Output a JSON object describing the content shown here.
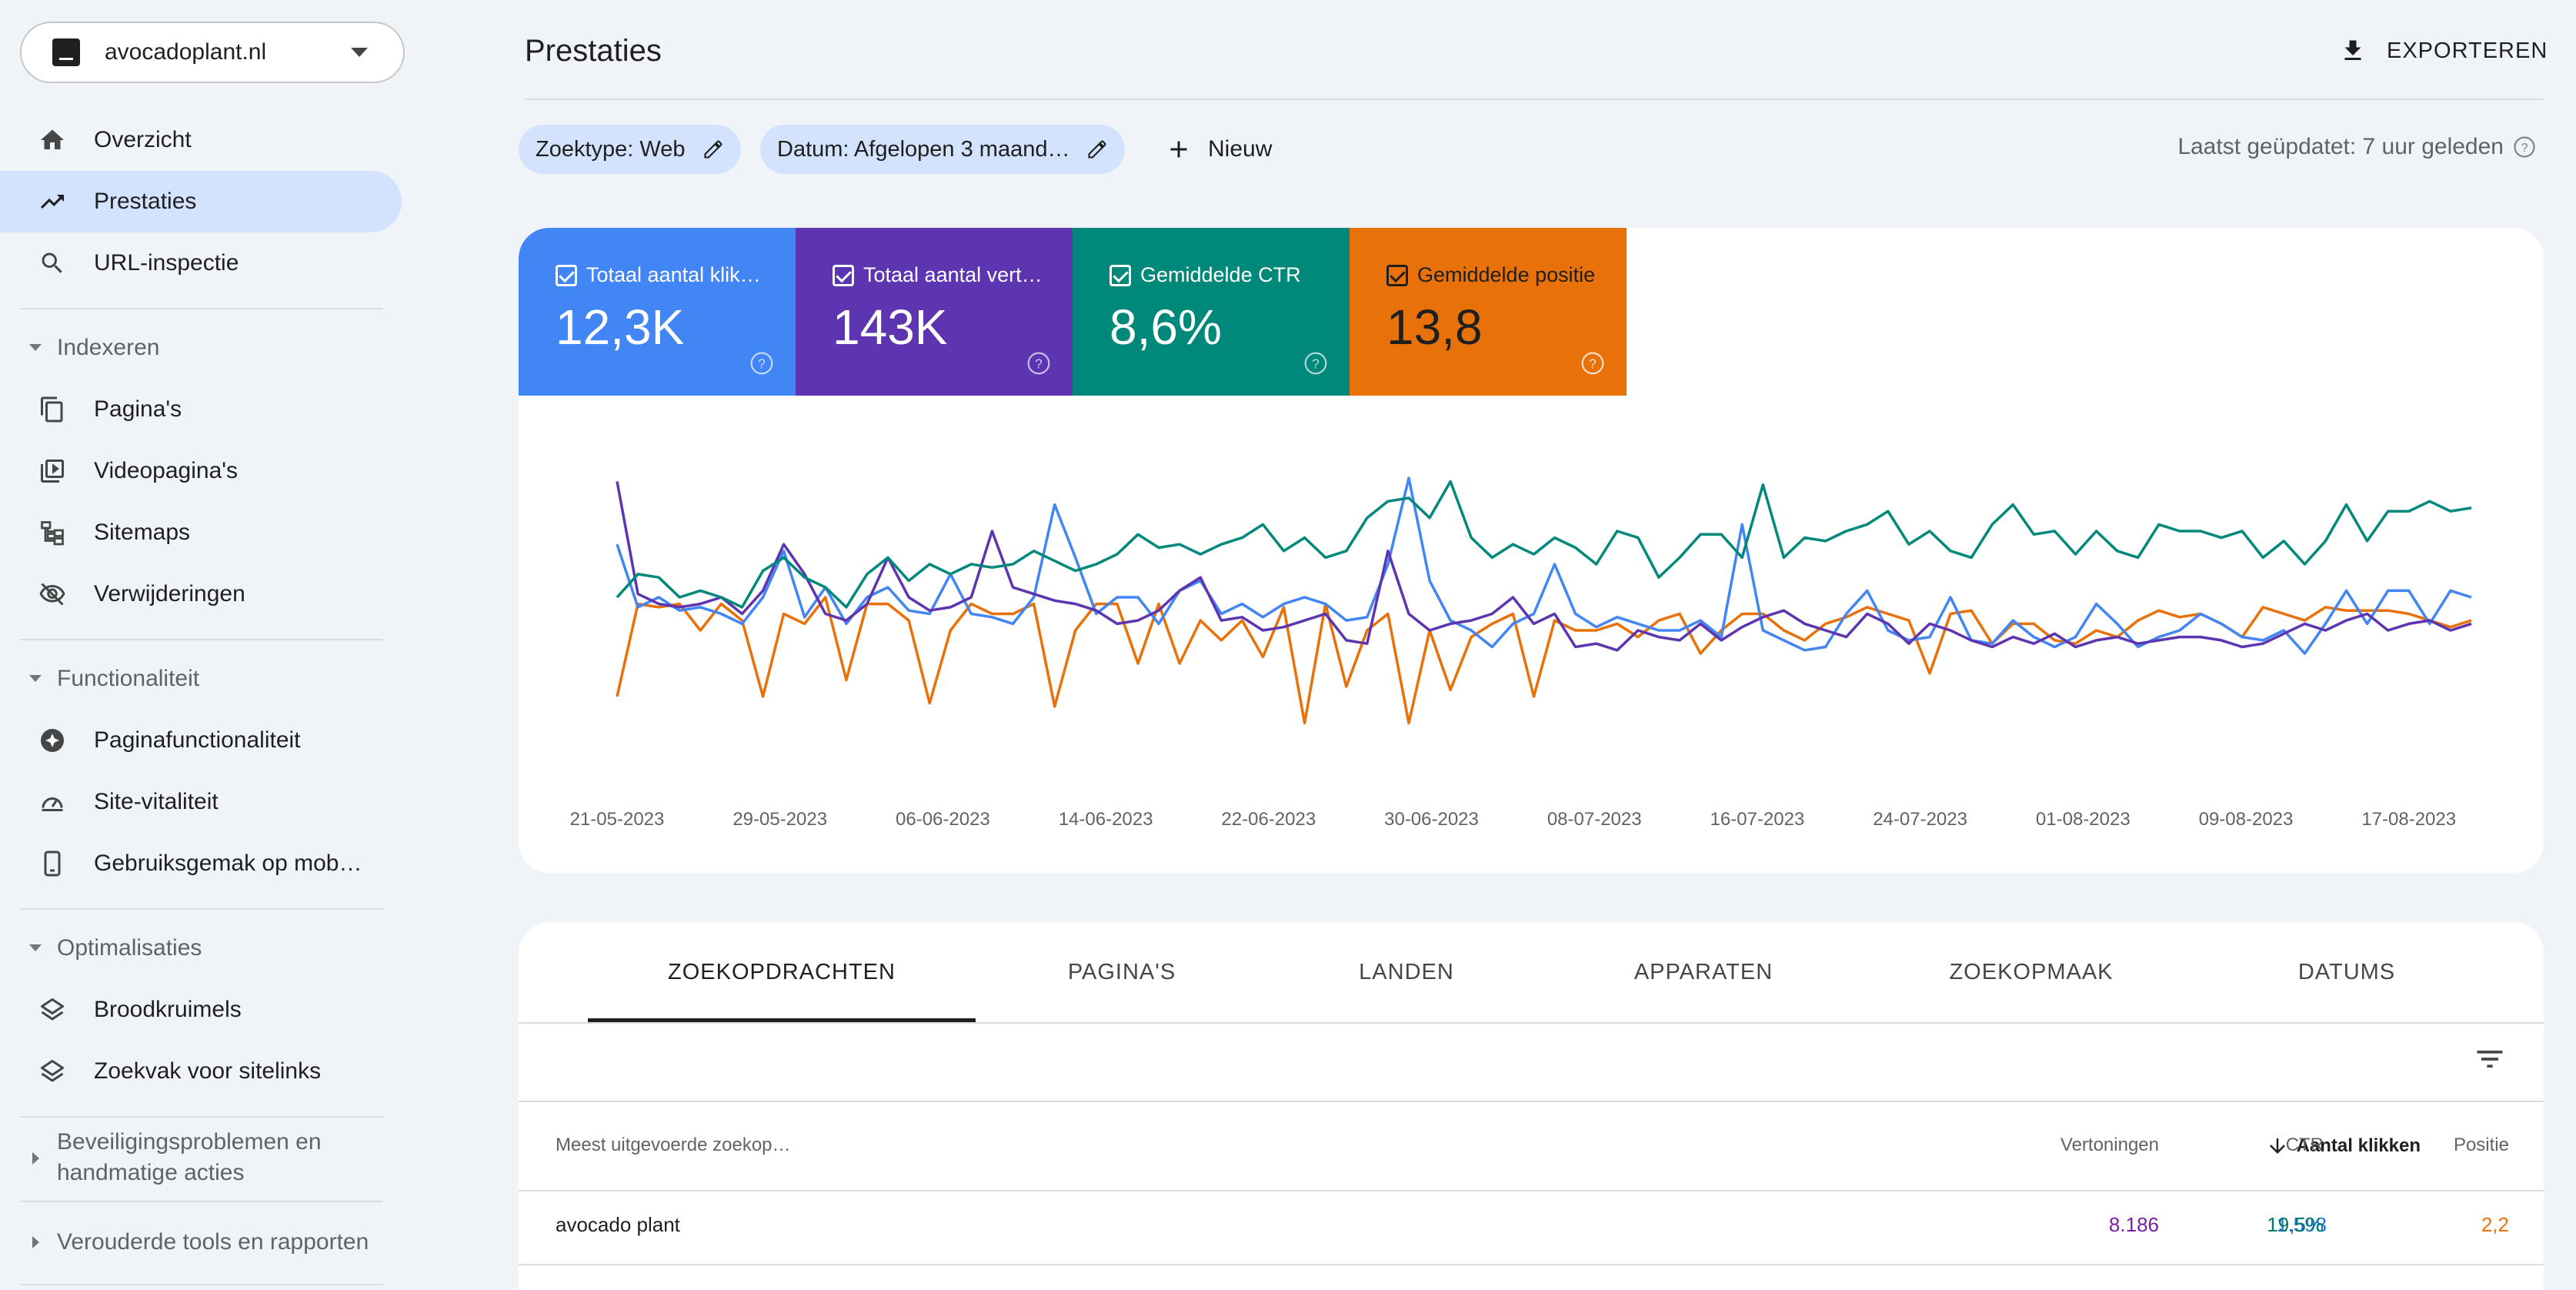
{
  "property": {
    "name": "avocadoplant.nl"
  },
  "sidebar": {
    "items": [
      {
        "label": "Overzicht",
        "icon": "home-icon"
      },
      {
        "label": "Prestaties",
        "icon": "trending-up-icon",
        "active": true
      },
      {
        "label": "URL-inspectie",
        "icon": "search-icon"
      }
    ],
    "sections": [
      {
        "title": "Indexeren",
        "expanded": true,
        "items": [
          {
            "label": "Pagina's",
            "icon": "pages-icon"
          },
          {
            "label": "Videopagina's",
            "icon": "video-pages-icon"
          },
          {
            "label": "Sitemaps",
            "icon": "sitemap-icon"
          },
          {
            "label": "Verwijderingen",
            "icon": "eye-off-icon"
          }
        ]
      },
      {
        "title": "Functionaliteit",
        "expanded": true,
        "items": [
          {
            "label": "Paginafunctionaliteit",
            "icon": "page-experience-icon"
          },
          {
            "label": "Site-vitaliteit",
            "icon": "gauge-icon"
          },
          {
            "label": "Gebruiksgemak op mob…",
            "icon": "smartphone-icon"
          }
        ]
      },
      {
        "title": "Optimalisaties",
        "expanded": true,
        "items": [
          {
            "label": "Broodkruimels",
            "icon": "layers-icon"
          },
          {
            "label": "Zoekvak voor sitelinks",
            "icon": "layers-icon"
          }
        ]
      },
      {
        "title_line1": "Beveiligingsproblemen en",
        "title_line2": "handmatige acties",
        "expanded": false
      },
      {
        "title": "Verouderde tools en rapporten",
        "expanded": false
      }
    ]
  },
  "header": {
    "title": "Prestaties",
    "export_label": "EXPORTEREN",
    "last_updated": "Laatst geüpdatet: 7 uur geleden"
  },
  "filters": {
    "chips": [
      "Zoektype: Web",
      "Datum: Afgelopen 3 maand…"
    ],
    "new_label": "Nieuw"
  },
  "metrics": [
    {
      "label": "Totaal aantal klik…",
      "value": "12,3K",
      "color": "#4285f4"
    },
    {
      "label": "Totaal aantal vert…",
      "value": "143K",
      "color": "#5e35b1"
    },
    {
      "label": "Gemiddelde CTR",
      "value": "8,6%",
      "color": "#00897b"
    },
    {
      "label": "Gemiddelde positie",
      "value": "13,8",
      "color": "#e8710a"
    }
  ],
  "chart_data": {
    "type": "line",
    "x_tick_labels": [
      "21-05-2023",
      "29-05-2023",
      "06-06-2023",
      "14-06-2023",
      "22-06-2023",
      "30-06-2023",
      "08-07-2023",
      "16-07-2023",
      "24-07-2023",
      "01-08-2023",
      "09-08-2023",
      "17-08-2023"
    ],
    "x_start": "20-05-2023",
    "x_end": "19-08-2023",
    "axes_hidden": true,
    "normalized": true,
    "ylim": [
      0,
      1
    ],
    "series": [
      {
        "color": "#4285f4",
        "values": [
          0.76,
          0.57,
          0.6,
          0.56,
          0.57,
          0.55,
          0.52,
          0.6,
          0.74,
          0.54,
          0.63,
          0.52,
          0.6,
          0.63,
          0.56,
          0.55,
          0.67,
          0.55,
          0.54,
          0.52,
          0.6,
          0.88,
          0.72,
          0.55,
          0.6,
          0.6,
          0.52,
          0.62,
          0.65,
          0.55,
          0.58,
          0.54,
          0.58,
          0.6,
          0.58,
          0.53,
          0.54,
          0.7,
          0.96,
          0.65,
          0.53,
          0.5,
          0.45,
          0.52,
          0.55,
          0.7,
          0.55,
          0.51,
          0.54,
          0.52,
          0.5,
          0.5,
          0.53,
          0.48,
          0.82,
          0.5,
          0.47,
          0.44,
          0.45,
          0.55,
          0.62,
          0.5,
          0.47,
          0.48,
          0.6,
          0.47,
          0.46,
          0.53,
          0.48,
          0.45,
          0.48,
          0.58,
          0.52,
          0.45,
          0.48,
          0.5,
          0.55,
          0.52,
          0.48,
          0.47,
          0.5,
          0.43,
          0.52,
          0.62,
          0.52,
          0.62,
          0.62,
          0.52,
          0.62,
          0.6
        ]
      },
      {
        "color": "#5e35b1",
        "values": [
          0.95,
          0.61,
          0.58,
          0.57,
          0.58,
          0.6,
          0.55,
          0.62,
          0.76,
          0.67,
          0.55,
          0.53,
          0.58,
          0.72,
          0.6,
          0.56,
          0.57,
          0.6,
          0.8,
          0.63,
          0.61,
          0.59,
          0.58,
          0.56,
          0.52,
          0.53,
          0.56,
          0.62,
          0.66,
          0.53,
          0.54,
          0.5,
          0.51,
          0.53,
          0.55,
          0.47,
          0.46,
          0.74,
          0.55,
          0.5,
          0.52,
          0.53,
          0.55,
          0.6,
          0.52,
          0.55,
          0.45,
          0.46,
          0.44,
          0.5,
          0.48,
          0.47,
          0.52,
          0.47,
          0.51,
          0.54,
          0.56,
          0.52,
          0.5,
          0.48,
          0.55,
          0.52,
          0.46,
          0.52,
          0.5,
          0.47,
          0.45,
          0.48,
          0.46,
          0.49,
          0.45,
          0.47,
          0.48,
          0.46,
          0.47,
          0.48,
          0.48,
          0.47,
          0.45,
          0.46,
          0.49,
          0.52,
          0.5,
          0.53,
          0.55,
          0.5,
          0.52,
          0.53,
          0.5,
          0.52
        ]
      },
      {
        "color": "#00897b",
        "values": [
          0.6,
          0.67,
          0.66,
          0.6,
          0.62,
          0.6,
          0.57,
          0.68,
          0.72,
          0.66,
          0.63,
          0.57,
          0.67,
          0.72,
          0.65,
          0.7,
          0.67,
          0.7,
          0.69,
          0.7,
          0.74,
          0.71,
          0.68,
          0.7,
          0.73,
          0.79,
          0.75,
          0.76,
          0.73,
          0.76,
          0.78,
          0.82,
          0.74,
          0.78,
          0.72,
          0.74,
          0.84,
          0.89,
          0.9,
          0.84,
          0.95,
          0.78,
          0.72,
          0.76,
          0.73,
          0.78,
          0.75,
          0.7,
          0.8,
          0.78,
          0.66,
          0.72,
          0.79,
          0.79,
          0.72,
          0.94,
          0.72,
          0.78,
          0.77,
          0.8,
          0.82,
          0.86,
          0.76,
          0.8,
          0.74,
          0.72,
          0.82,
          0.88,
          0.79,
          0.8,
          0.73,
          0.8,
          0.74,
          0.72,
          0.82,
          0.8,
          0.8,
          0.78,
          0.8,
          0.72,
          0.77,
          0.7,
          0.77,
          0.88,
          0.77,
          0.86,
          0.86,
          0.89,
          0.86,
          0.87
        ]
      },
      {
        "color": "#e8710a",
        "values": [
          0.3,
          0.58,
          0.57,
          0.58,
          0.5,
          0.58,
          0.53,
          0.3,
          0.55,
          0.52,
          0.6,
          0.35,
          0.58,
          0.58,
          0.53,
          0.28,
          0.5,
          0.58,
          0.55,
          0.55,
          0.58,
          0.27,
          0.5,
          0.58,
          0.58,
          0.4,
          0.58,
          0.4,
          0.53,
          0.47,
          0.53,
          0.42,
          0.57,
          0.22,
          0.58,
          0.33,
          0.5,
          0.55,
          0.22,
          0.5,
          0.32,
          0.48,
          0.52,
          0.55,
          0.3,
          0.53,
          0.5,
          0.5,
          0.52,
          0.48,
          0.53,
          0.55,
          0.43,
          0.5,
          0.55,
          0.55,
          0.5,
          0.47,
          0.52,
          0.54,
          0.57,
          0.55,
          0.53,
          0.37,
          0.55,
          0.56,
          0.46,
          0.52,
          0.52,
          0.47,
          0.46,
          0.5,
          0.48,
          0.53,
          0.56,
          0.54,
          0.55,
          0.52,
          0.48,
          0.57,
          0.55,
          0.53,
          0.57,
          0.56,
          0.56,
          0.56,
          0.55,
          0.53,
          0.51,
          0.53
        ]
      }
    ]
  },
  "tabs": [
    "ZOEKOPDRACHTEN",
    "PAGINA'S",
    "LANDEN",
    "APPARATEN",
    "ZOEKOPMAAK",
    "DATUMS"
  ],
  "table": {
    "columns": [
      "Meest uitgevoerde zoekop…",
      "Aantal klikken",
      "Vertoningen",
      "CTR",
      "Positie"
    ],
    "rows": [
      {
        "query": "avocado plant",
        "clicks": "1.598",
        "impressions": "8.186",
        "ctr": "19,5%",
        "position": "2,2"
      }
    ]
  }
}
